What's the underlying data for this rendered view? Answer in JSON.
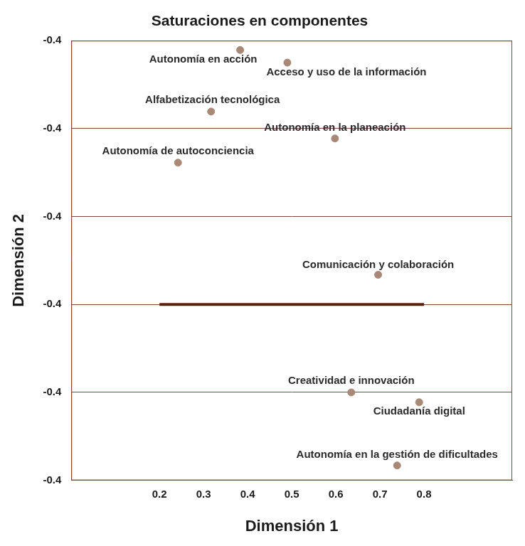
{
  "chart_data": {
    "type": "scatter",
    "title": "Saturaciones en componentes",
    "x_label": "Dimensión 1",
    "y_label": "Dimensión 2",
    "xlim": [
      0,
      1
    ],
    "xticks": [
      0.2,
      0.3,
      0.4,
      0.5,
      0.6,
      0.7,
      0.8
    ],
    "ylim": [
      -0.44,
      -0.36
    ],
    "yticks": [
      {
        "value": -0.44,
        "label": "-0.4"
      },
      {
        "value": -0.424,
        "label": "-0.4"
      },
      {
        "value": -0.408,
        "label": "-0.4"
      },
      {
        "value": -0.392,
        "label": "-0.4"
      },
      {
        "value": -0.376,
        "label": "-0.4"
      },
      {
        "value": -0.36,
        "label": "-0.4"
      }
    ],
    "grid": "y",
    "color": "#a88877",
    "data_labels": true,
    "points": [
      {
        "name": "Autonomía en acción",
        "x": 0.383,
        "y": -0.3617
      },
      {
        "name": "Acceso y uso de la información",
        "x": 0.49,
        "y": -0.364
      },
      {
        "name": "Alfabetización tecnológica",
        "x": 0.317,
        "y": -0.3729
      },
      {
        "name": "Autonomía en la planeación",
        "x": 0.598,
        "y": -0.3778
      },
      {
        "name": "Autonomía de autoconciencia",
        "x": 0.242,
        "y": -0.3822
      },
      {
        "name": "Comunicación y colaboración",
        "x": 0.696,
        "y": -0.4026
      },
      {
        "name": "Creatividad e innovación",
        "x": 0.635,
        "y": -0.424
      },
      {
        "name": "Ciudadanía digital",
        "x": 0.789,
        "y": -0.4258
      },
      {
        "name": "Autonomía en la gestión de dificultades",
        "x": 0.739,
        "y": -0.4373
      }
    ],
    "segment": {
      "x": [
        0.2,
        0.8
      ],
      "y": -0.408,
      "color": "#5a2311"
    }
  }
}
